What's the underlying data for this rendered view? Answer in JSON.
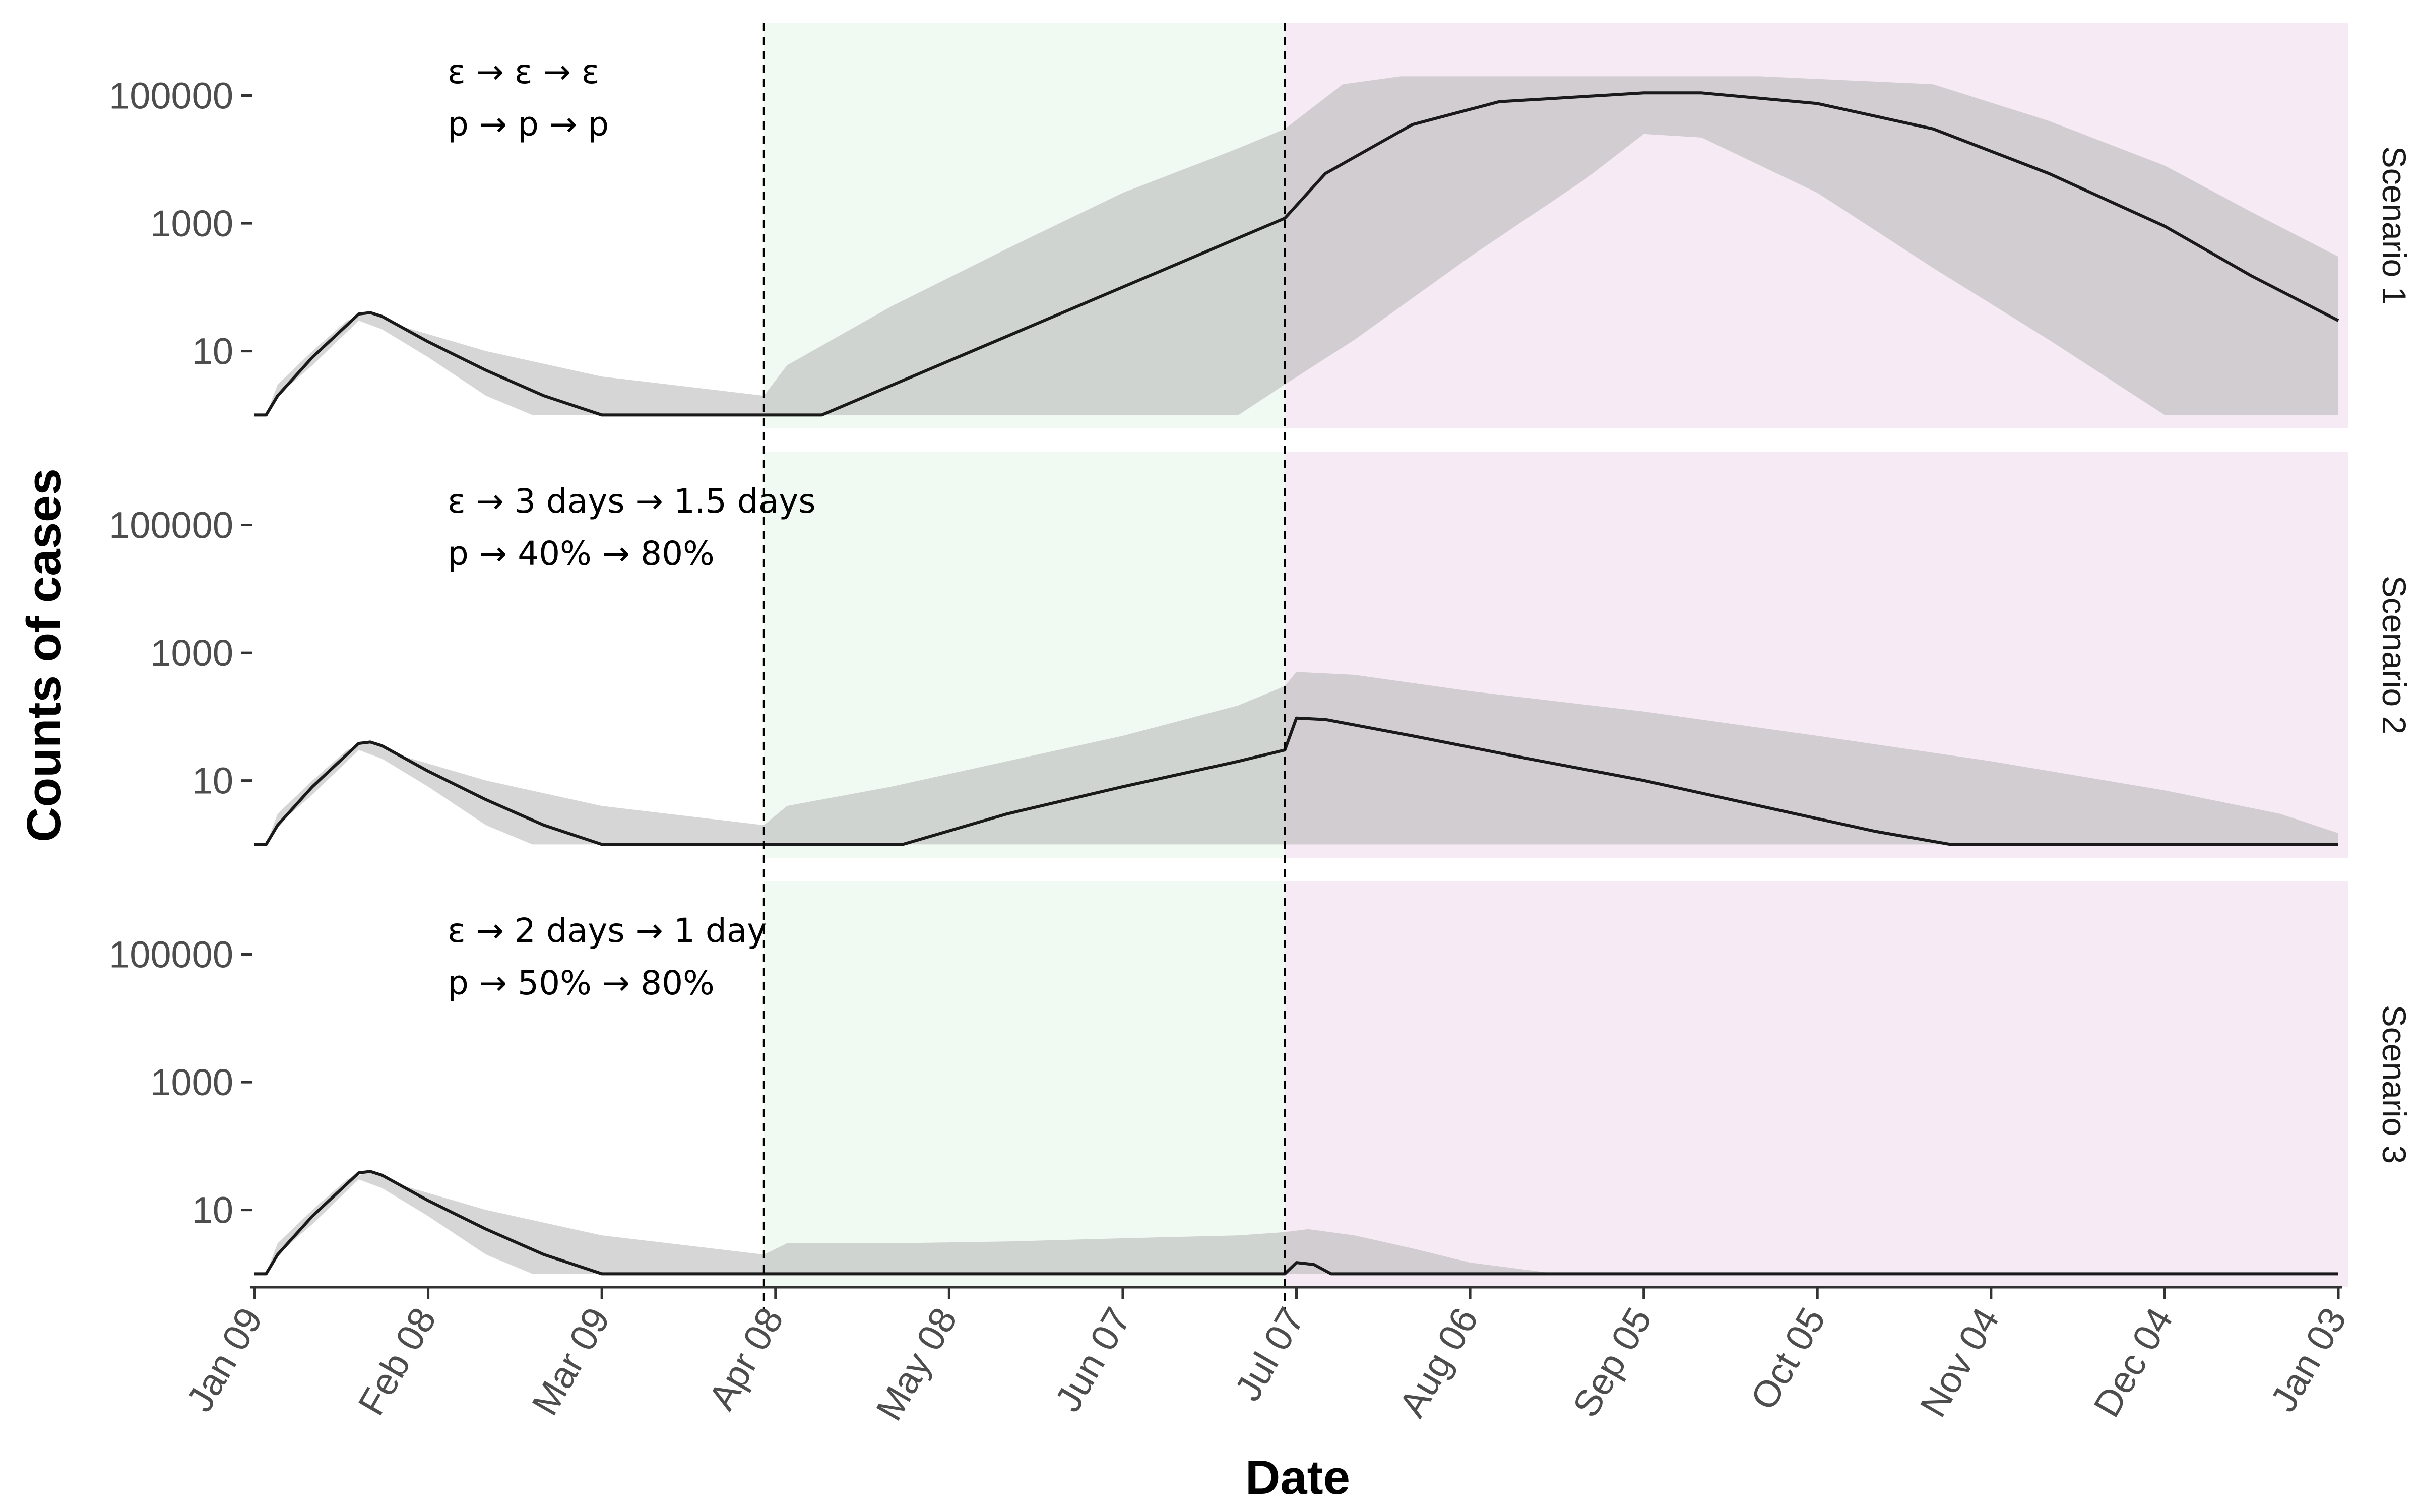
{
  "chart_data": {
    "type": "line",
    "xlabel": "Date",
    "ylabel": "Counts of cases",
    "y_scale": "log",
    "y_ticks": [
      10,
      1000,
      100000
    ],
    "y_tick_labels": [
      "10",
      "1000",
      "100000"
    ],
    "x_tick_labels": [
      "Jan 09",
      "Feb 08",
      "Mar 09",
      "Apr 08",
      "May 08",
      "Jun 07",
      "Jul 07",
      "Aug 06",
      "Sep 05",
      "Oct 05",
      "Nov 04",
      "Dec 04",
      "Jan 03"
    ],
    "x_range_days": [
      0,
      360
    ],
    "phase_boundaries_days": [
      88,
      178
    ],
    "colors": {
      "phase2_background": "#f1faf2",
      "phase3_background": "#f6eaf4",
      "interval_band": "#b5b5b5",
      "median_line": "#1a1a1a"
    },
    "panels": [
      {
        "strip": "Scenario 1",
        "annotation": [
          "ε → ε → ε",
          "p → p → p"
        ],
        "median": [
          [
            0,
            1
          ],
          [
            2,
            1
          ],
          [
            4,
            2
          ],
          [
            10,
            8
          ],
          [
            18,
            38
          ],
          [
            20,
            40
          ],
          [
            22,
            35
          ],
          [
            30,
            14
          ],
          [
            40,
            5
          ],
          [
            50,
            2
          ],
          [
            60,
            1
          ],
          [
            98,
            1
          ],
          [
            178,
            1200
          ],
          [
            185,
            6000
          ],
          [
            200,
            35000
          ],
          [
            215,
            80000
          ],
          [
            240,
            110000
          ],
          [
            250,
            110000
          ],
          [
            270,
            75000
          ],
          [
            290,
            30000
          ],
          [
            310,
            6000
          ],
          [
            330,
            900
          ],
          [
            345,
            150
          ],
          [
            360,
            30
          ]
        ],
        "upper": [
          [
            0,
            1
          ],
          [
            2,
            1
          ],
          [
            4,
            3
          ],
          [
            10,
            10
          ],
          [
            16,
            30
          ],
          [
            20,
            40
          ],
          [
            25,
            25
          ],
          [
            40,
            10
          ],
          [
            60,
            4
          ],
          [
            88,
            2
          ],
          [
            88,
            2
          ],
          [
            92,
            6
          ],
          [
            110,
            50
          ],
          [
            130,
            400
          ],
          [
            150,
            3000
          ],
          [
            170,
            15000
          ],
          [
            178,
            30000
          ],
          [
            188,
            150000
          ],
          [
            198,
            200000
          ],
          [
            230,
            200000
          ],
          [
            260,
            200000
          ],
          [
            290,
            150000
          ],
          [
            310,
            40000
          ],
          [
            330,
            8000
          ],
          [
            345,
            1500
          ],
          [
            360,
            300
          ]
        ],
        "lower": [
          [
            0,
            1
          ],
          [
            2,
            1
          ],
          [
            4,
            2
          ],
          [
            10,
            6
          ],
          [
            18,
            30
          ],
          [
            22,
            22
          ],
          [
            30,
            8
          ],
          [
            40,
            2
          ],
          [
            48,
            1
          ],
          [
            170,
            1
          ],
          [
            178,
            3
          ],
          [
            190,
            15
          ],
          [
            210,
            300
          ],
          [
            230,
            5000
          ],
          [
            240,
            25000
          ],
          [
            250,
            22000
          ],
          [
            270,
            3000
          ],
          [
            290,
            200
          ],
          [
            310,
            15
          ],
          [
            330,
            1
          ],
          [
            360,
            1
          ]
        ]
      },
      {
        "strip": "Scenario 2",
        "annotation": [
          "ε → 3 days → 1.5 days",
          "p → 40% → 80%"
        ],
        "median": [
          [
            0,
            1
          ],
          [
            2,
            1
          ],
          [
            4,
            2
          ],
          [
            10,
            8
          ],
          [
            18,
            38
          ],
          [
            20,
            40
          ],
          [
            22,
            35
          ],
          [
            30,
            14
          ],
          [
            40,
            5
          ],
          [
            50,
            2
          ],
          [
            60,
            1
          ],
          [
            112,
            1
          ],
          [
            130,
            3
          ],
          [
            150,
            8
          ],
          [
            170,
            20
          ],
          [
            178,
            30
          ],
          [
            180,
            95
          ],
          [
            185,
            90
          ],
          [
            200,
            50
          ],
          [
            220,
            22
          ],
          [
            240,
            10
          ],
          [
            260,
            4
          ],
          [
            280,
            1.6
          ],
          [
            293,
            1
          ],
          [
            360,
            1
          ]
        ],
        "upper": [
          [
            0,
            1
          ],
          [
            2,
            1
          ],
          [
            4,
            3
          ],
          [
            10,
            10
          ],
          [
            16,
            30
          ],
          [
            20,
            40
          ],
          [
            25,
            25
          ],
          [
            40,
            10
          ],
          [
            60,
            4
          ],
          [
            88,
            2
          ],
          [
            92,
            4
          ],
          [
            110,
            8
          ],
          [
            130,
            20
          ],
          [
            150,
            50
          ],
          [
            170,
            150
          ],
          [
            178,
            300
          ],
          [
            180,
            500
          ],
          [
            190,
            450
          ],
          [
            210,
            250
          ],
          [
            240,
            120
          ],
          [
            270,
            50
          ],
          [
            300,
            20
          ],
          [
            330,
            7
          ],
          [
            350,
            3
          ],
          [
            360,
            1.5
          ]
        ],
        "lower": [
          [
            0,
            1
          ],
          [
            2,
            1
          ],
          [
            4,
            2
          ],
          [
            10,
            6
          ],
          [
            18,
            30
          ],
          [
            22,
            22
          ],
          [
            30,
            8
          ],
          [
            40,
            2
          ],
          [
            48,
            1
          ],
          [
            360,
            1
          ]
        ]
      },
      {
        "strip": "Scenario 3",
        "annotation": [
          "ε → 2 days → 1 day",
          "p → 50% → 80%"
        ],
        "median": [
          [
            0,
            1
          ],
          [
            2,
            1
          ],
          [
            4,
            2
          ],
          [
            10,
            8
          ],
          [
            18,
            38
          ],
          [
            20,
            40
          ],
          [
            22,
            35
          ],
          [
            30,
            14
          ],
          [
            40,
            5
          ],
          [
            50,
            2
          ],
          [
            60,
            1
          ],
          [
            178,
            1
          ],
          [
            180,
            1.5
          ],
          [
            183,
            1.4
          ],
          [
            186,
            1
          ],
          [
            360,
            1
          ]
        ],
        "upper": [
          [
            0,
            1
          ],
          [
            2,
            1
          ],
          [
            4,
            3
          ],
          [
            10,
            10
          ],
          [
            16,
            30
          ],
          [
            20,
            40
          ],
          [
            25,
            25
          ],
          [
            40,
            10
          ],
          [
            60,
            4
          ],
          [
            88,
            2
          ],
          [
            92,
            3
          ],
          [
            110,
            3
          ],
          [
            130,
            3.2
          ],
          [
            150,
            3.6
          ],
          [
            170,
            4
          ],
          [
            178,
            4.5
          ],
          [
            182,
            5
          ],
          [
            190,
            4
          ],
          [
            200,
            2.5
          ],
          [
            210,
            1.5
          ],
          [
            225,
            1
          ],
          [
            360,
            1
          ]
        ],
        "lower": [
          [
            0,
            1
          ],
          [
            2,
            1
          ],
          [
            4,
            2
          ],
          [
            10,
            6
          ],
          [
            18,
            30
          ],
          [
            22,
            22
          ],
          [
            30,
            8
          ],
          [
            40,
            2
          ],
          [
            48,
            1
          ],
          [
            360,
            1
          ]
        ]
      }
    ]
  }
}
